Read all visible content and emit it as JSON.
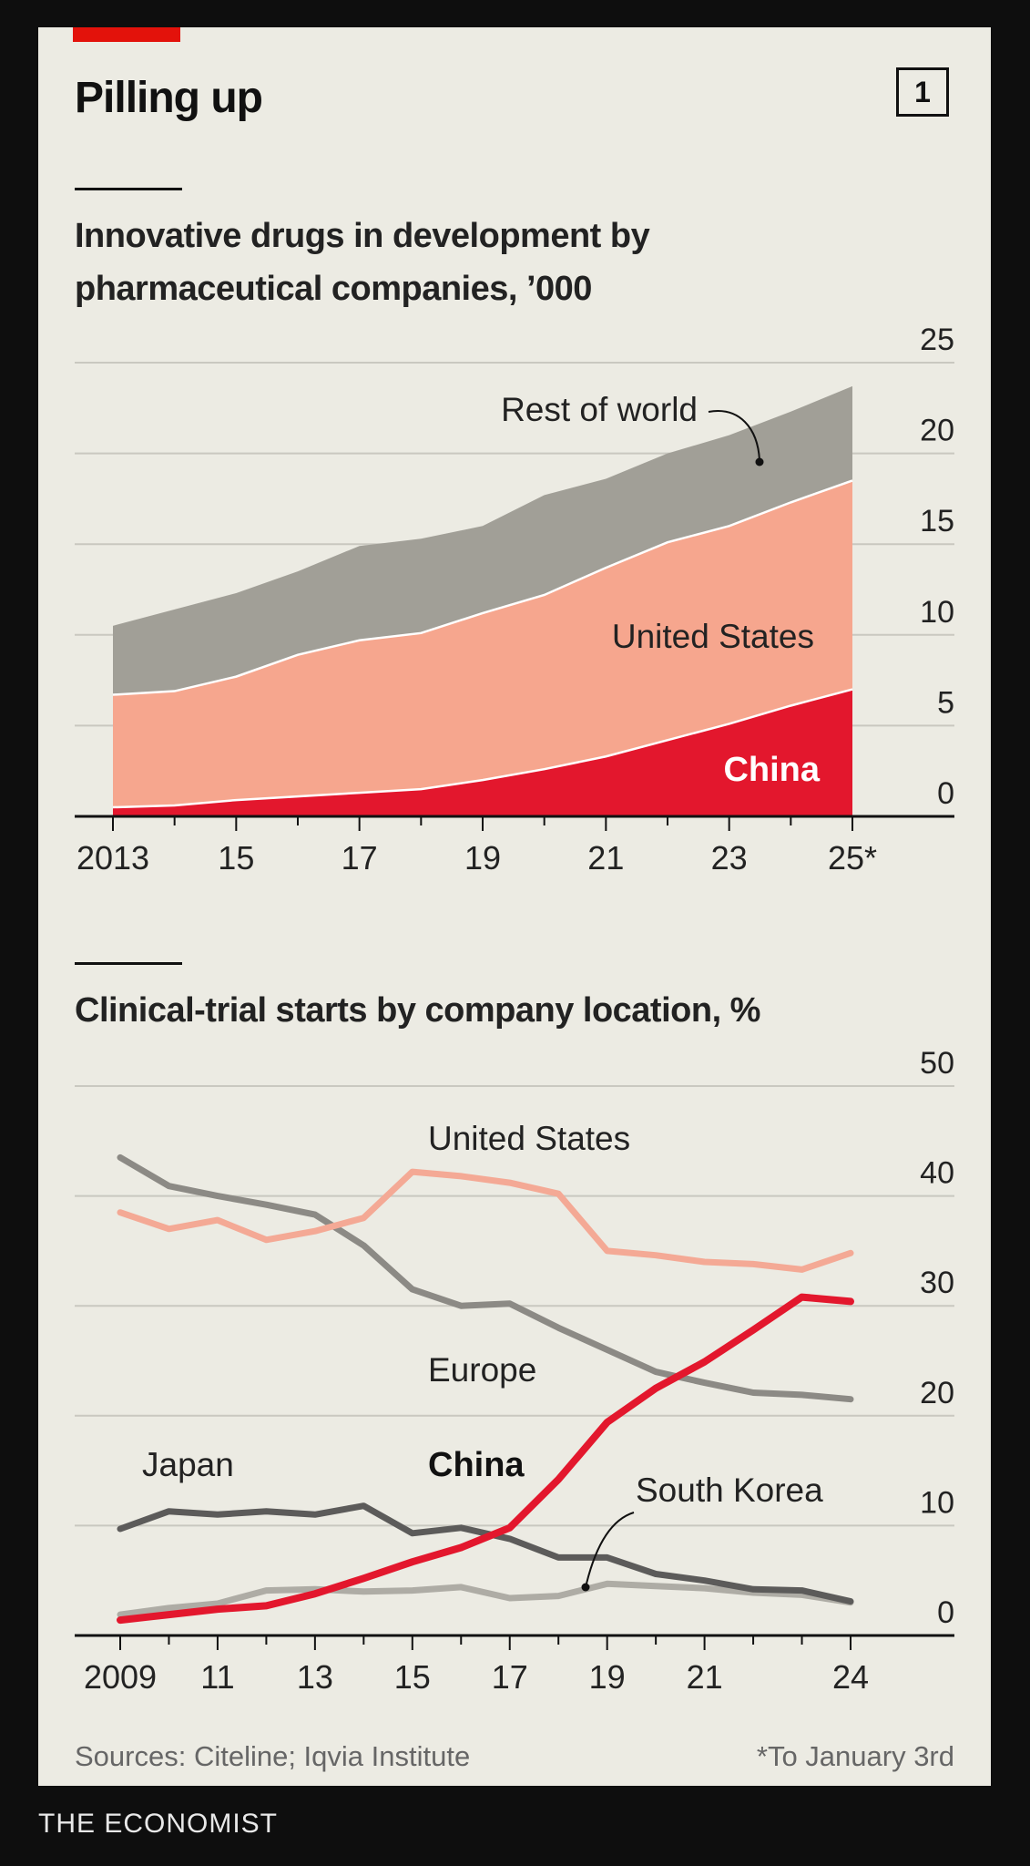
{
  "header": {
    "title": "Pilling up",
    "chart_number": "1"
  },
  "footer": {
    "sources": "Sources: Citeline; Iqvia Institute",
    "note": "*To January 3rd",
    "brand": "THE ECONOMIST"
  },
  "colors": {
    "rest_of_world": "#a19f97",
    "united_states": "#f6a68e",
    "china": "#e3172d",
    "us_line": "#f4a995",
    "europe_line": "#8c8a85",
    "japan_line": "#5c5b5a",
    "south_korea_line": "#aeaca5",
    "china_line": "#e3172d"
  },
  "chart_data": [
    {
      "type": "area",
      "stacked": true,
      "title": "Innovative drugs in development by pharmaceutical companies, ’000",
      "x": [
        2013,
        2014,
        2015,
        2016,
        2017,
        2018,
        2019,
        2020,
        2021,
        2022,
        2023,
        2024,
        2025
      ],
      "xticks": [
        2013,
        2015,
        2017,
        2019,
        2021,
        2023,
        2025
      ],
      "xtick_labels": [
        "2013",
        "15",
        "17",
        "19",
        "21",
        "23",
        "25*"
      ],
      "ylim": [
        0,
        25
      ],
      "yticks": [
        0,
        5,
        10,
        15,
        20,
        25
      ],
      "ytick_labels": [
        "0",
        "5",
        "10",
        "15",
        "20",
        "25"
      ],
      "series": [
        {
          "name": "China",
          "label": "China",
          "values": [
            0.5,
            0.6,
            0.9,
            1.1,
            1.3,
            1.5,
            2.0,
            2.6,
            3.3,
            4.2,
            5.1,
            6.1,
            7.0
          ]
        },
        {
          "name": "United States",
          "label": "United States",
          "values": [
            6.2,
            6.3,
            6.8,
            7.8,
            8.4,
            8.6,
            9.2,
            9.6,
            10.4,
            10.9,
            10.9,
            11.2,
            11.5
          ]
        },
        {
          "name": "Rest of world",
          "label": "Rest of world",
          "values": [
            3.8,
            4.5,
            4.6,
            4.6,
            5.2,
            5.2,
            4.8,
            5.5,
            4.9,
            4.9,
            5.0,
            5.0,
            5.2
          ]
        }
      ]
    },
    {
      "type": "line",
      "title": "Clinical-trial starts by company location, %",
      "x": [
        2009,
        2010,
        2011,
        2012,
        2013,
        2014,
        2015,
        2016,
        2017,
        2018,
        2019,
        2020,
        2021,
        2022,
        2023,
        2024
      ],
      "xticks": [
        2009,
        2011,
        2013,
        2015,
        2017,
        2019,
        2021,
        2024
      ],
      "xtick_labels": [
        "2009",
        "11",
        "13",
        "15",
        "17",
        "19",
        "21",
        "24"
      ],
      "ylim": [
        0,
        50
      ],
      "yticks": [
        0,
        10,
        20,
        30,
        40,
        50
      ],
      "ytick_labels": [
        "0",
        "10",
        "20",
        "30",
        "40",
        "50"
      ],
      "series": [
        {
          "name": "United States",
          "label": "United States",
          "values": [
            38.5,
            37,
            37.8,
            36,
            36.8,
            38,
            42.2,
            41.8,
            41.2,
            40.2,
            35,
            34.6,
            34,
            33.8,
            33.3,
            34.8
          ]
        },
        {
          "name": "Europe",
          "label": "Europe",
          "values": [
            43.5,
            40.9,
            40,
            39.2,
            38.3,
            35.5,
            31.5,
            30,
            30.2,
            28,
            26,
            24,
            23,
            22.1,
            21.9,
            21.5
          ]
        },
        {
          "name": "Japan",
          "label": "Japan",
          "values": [
            9.7,
            11.3,
            11,
            11.3,
            11,
            11.8,
            9.3,
            9.8,
            8.8,
            7.1,
            7.1,
            5.6,
            5,
            4.2,
            4.1,
            3.1
          ]
        },
        {
          "name": "South Korea",
          "label": "South Korea",
          "values": [
            1.9,
            2.5,
            2.9,
            4.1,
            4.2,
            4,
            4.1,
            4.4,
            3.4,
            3.6,
            4.7,
            4.5,
            4.3,
            3.9,
            3.7,
            3
          ]
        },
        {
          "name": "China",
          "label": "China",
          "values": [
            1.4,
            1.9,
            2.4,
            2.7,
            3.8,
            5.2,
            6.7,
            8,
            9.8,
            14.2,
            19.4,
            22.5,
            24.9,
            27.8,
            30.8,
            30.4
          ]
        }
      ]
    }
  ]
}
